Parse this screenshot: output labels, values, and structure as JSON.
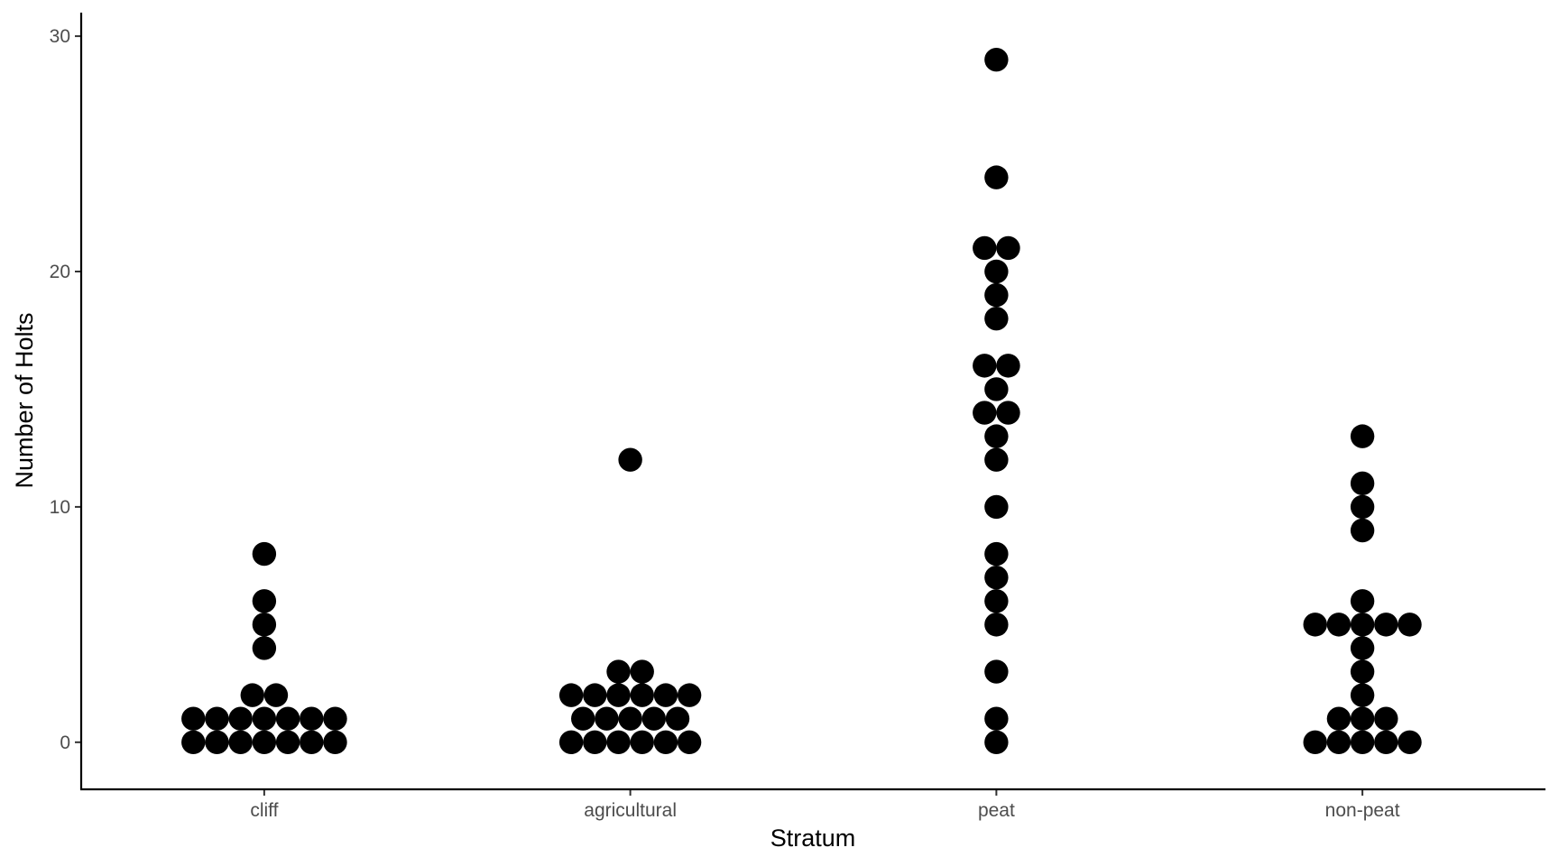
{
  "chart_data": {
    "type": "scatter",
    "subtype": "beeswarm",
    "title": "",
    "xlabel": "Stratum",
    "ylabel": "Number of Holts",
    "categories": [
      "cliff",
      "agricultural",
      "peat",
      "non-peat"
    ],
    "ylim": [
      -2,
      31
    ],
    "yticks": [
      0,
      10,
      20,
      30
    ],
    "grid": false,
    "legend": "none",
    "marker_color": "#000000",
    "series": [
      {
        "category": "cliff",
        "values": [
          0,
          0,
          0,
          0,
          0,
          0,
          0,
          1,
          1,
          1,
          1,
          1,
          1,
          1,
          2,
          2,
          4,
          5,
          6,
          8
        ]
      },
      {
        "category": "agricultural",
        "values": [
          0,
          0,
          0,
          0,
          0,
          0,
          1,
          1,
          1,
          1,
          1,
          2,
          2,
          2,
          2,
          2,
          2,
          3,
          3,
          12
        ]
      },
      {
        "category": "peat",
        "values": [
          0,
          1,
          3,
          5,
          6,
          7,
          8,
          10,
          12,
          13,
          14,
          14,
          15,
          16,
          16,
          18,
          19,
          20,
          21,
          21,
          24,
          29
        ]
      },
      {
        "category": "non-peat",
        "values": [
          0,
          0,
          0,
          0,
          0,
          1,
          1,
          1,
          2,
          3,
          4,
          5,
          5,
          5,
          5,
          5,
          6,
          9,
          10,
          11,
          13
        ]
      }
    ]
  }
}
